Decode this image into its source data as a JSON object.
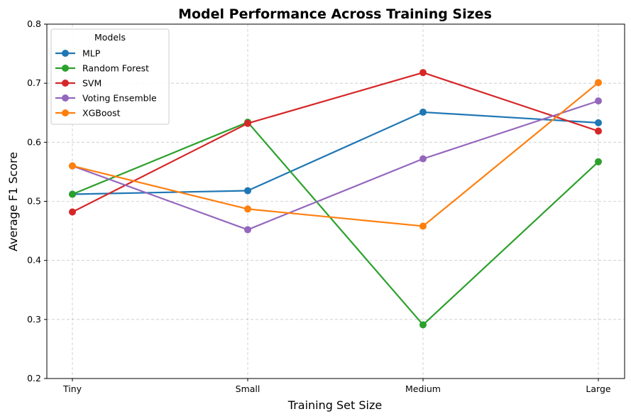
{
  "chart_data": {
    "type": "line",
    "title": "Model Performance Across Training Sizes",
    "xlabel": "Training Set Size",
    "ylabel": "Average F1 Score",
    "categories": [
      "Tiny",
      "Small",
      "Medium",
      "Large"
    ],
    "ylim": [
      0.2,
      0.8
    ],
    "yticks": [
      0.2,
      0.3,
      0.4,
      0.5,
      0.6,
      0.7,
      0.8
    ],
    "ytick_labels": [
      "0.2",
      "0.3",
      "0.4",
      "0.5",
      "0.6",
      "0.7",
      "0.8"
    ],
    "grid": true,
    "legend": {
      "title": "Models",
      "placement": "top-left"
    },
    "series": [
      {
        "name": "MLP",
        "color": "#1f77b4",
        "values": [
          0.512,
          0.518,
          0.651,
          0.633
        ]
      },
      {
        "name": "Random Forest",
        "color": "#2ca02c",
        "values": [
          0.512,
          0.634,
          0.291,
          0.567
        ]
      },
      {
        "name": "SVM",
        "color": "#d62728",
        "values": [
          0.482,
          0.632,
          0.718,
          0.619
        ]
      },
      {
        "name": "Voting Ensemble",
        "color": "#9467bd",
        "values": [
          0.56,
          0.452,
          0.572,
          0.67
        ]
      },
      {
        "name": "XGBoost",
        "color": "#ff7f0e",
        "values": [
          0.56,
          0.487,
          0.458,
          0.701
        ]
      }
    ]
  }
}
